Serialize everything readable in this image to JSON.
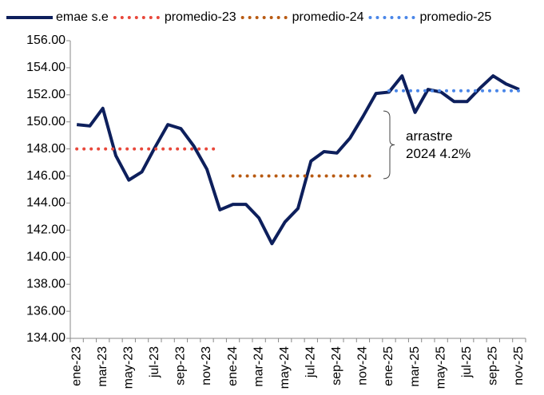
{
  "chart_data": {
    "type": "line",
    "categories": [
      "ene-23",
      null,
      "mar-23",
      null,
      "may-23",
      null,
      "jul-23",
      null,
      "sep-23",
      null,
      "nov-23",
      null,
      "ene-24",
      null,
      "mar-24",
      null,
      "may-24",
      null,
      "jul-24",
      null,
      "sep-24",
      null,
      "nov-24",
      null,
      "ene-25",
      null,
      "mar-25",
      null,
      "may-25",
      null,
      "jul-25",
      null,
      "sep-25",
      null,
      "nov-25"
    ],
    "series": [
      {
        "name": "emae s.e",
        "color": "#0d1f5c",
        "style": "solid",
        "values": [
          149.8,
          149.7,
          151.0,
          147.5,
          145.7,
          146.3,
          148.1,
          149.8,
          149.5,
          148.2,
          146.5,
          143.5,
          143.9,
          143.9,
          142.9,
          141.0,
          142.6,
          143.6,
          147.1,
          147.8,
          147.7,
          148.8,
          150.4,
          152.1,
          152.2,
          153.4,
          150.7,
          152.4,
          152.2,
          151.5,
          151.5,
          152.5,
          153.4,
          152.8,
          152.4
        ]
      },
      {
        "name": "promedio-23",
        "color": "#e8473a",
        "style": "dotted",
        "values": [
          148.0,
          148.0,
          148.0,
          148.0,
          148.0,
          148.0,
          148.0,
          148.0,
          148.0,
          148.0,
          148.0,
          148.0,
          null,
          null,
          null,
          null,
          null,
          null,
          null,
          null,
          null,
          null,
          null,
          null,
          null,
          null,
          null,
          null,
          null,
          null,
          null,
          null,
          null,
          null,
          null
        ]
      },
      {
        "name": "promedio-24",
        "color": "#b85a12",
        "style": "dotted",
        "values": [
          null,
          null,
          null,
          null,
          null,
          null,
          null,
          null,
          null,
          null,
          null,
          null,
          146.0,
          146.0,
          146.0,
          146.0,
          146.0,
          146.0,
          146.0,
          146.0,
          146.0,
          146.0,
          146.0,
          146.0,
          null,
          null,
          null,
          null,
          null,
          null,
          null,
          null,
          null,
          null,
          null
        ]
      },
      {
        "name": "promedio-25",
        "color": "#4a86e8",
        "style": "dotted",
        "values": [
          null,
          null,
          null,
          null,
          null,
          null,
          null,
          null,
          null,
          null,
          null,
          null,
          null,
          null,
          null,
          null,
          null,
          null,
          null,
          null,
          null,
          null,
          null,
          null,
          152.3,
          152.3,
          152.3,
          152.3,
          152.3,
          152.3,
          152.3,
          152.3,
          152.3,
          152.3,
          152.3
        ]
      }
    ],
    "annotation": [
      "arrastre",
      "2024 4.2%"
    ],
    "ylim": [
      134,
      156
    ],
    "yticks": [
      {
        "value": 134,
        "label": "134.00"
      },
      {
        "value": 136,
        "label": "136.00"
      },
      {
        "value": 138,
        "label": "138.00"
      },
      {
        "value": 140,
        "label": "140.00"
      },
      {
        "value": 142,
        "label": "142.00"
      },
      {
        "value": 144,
        "label": "144.00"
      },
      {
        "value": 146,
        "label": "146.00"
      },
      {
        "value": 148,
        "label": "148.00"
      },
      {
        "value": 150,
        "label": "150.00"
      },
      {
        "value": 152,
        "label": "152.00"
      },
      {
        "value": 154,
        "label": "154.00"
      },
      {
        "value": 156,
        "label": "156.00"
      }
    ],
    "grid": false,
    "legend": "top"
  }
}
